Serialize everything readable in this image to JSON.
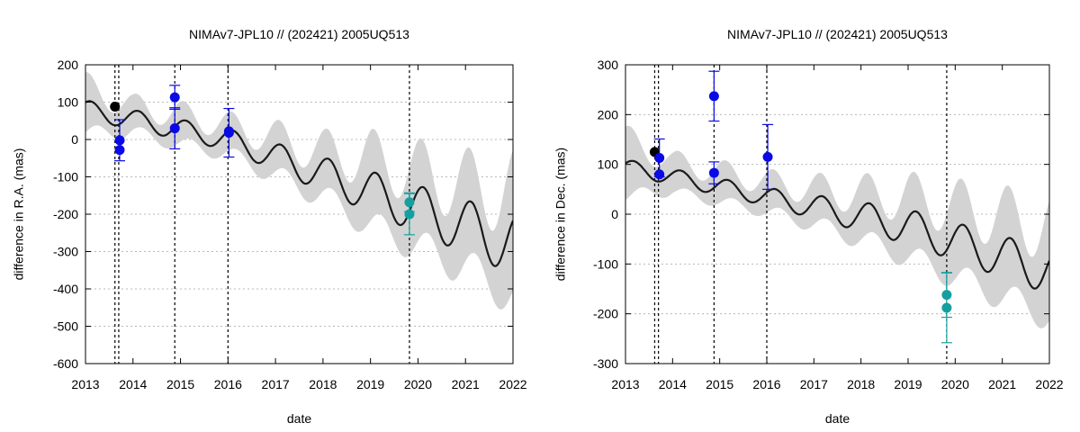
{
  "chart_data": [
    {
      "type": "line",
      "title": "NIMAv7-JPL10 // (202421) 2005UQ513",
      "xlabel": "date",
      "ylabel": "difference in R.A. (mas)",
      "xlim": [
        2013,
        2022
      ],
      "ylim": [
        -600,
        200
      ],
      "xticks": [
        2013,
        2014,
        2015,
        2016,
        2017,
        2018,
        2019,
        2020,
        2021,
        2022
      ],
      "yticks": [
        -600,
        -500,
        -400,
        -300,
        -200,
        -100,
        0,
        100,
        200
      ],
      "vlines": [
        2013.62,
        2013.7,
        2014.88,
        2016.0,
        2019.82
      ],
      "model": {
        "trend": [
          [
            2013.0,
            80
          ],
          [
            2016.0,
            0
          ],
          [
            2019.0,
            -140
          ],
          [
            2022.0,
            -280
          ]
        ],
        "amplitude": [
          [
            2013.0,
            25
          ],
          [
            2016.0,
            28
          ],
          [
            2019.0,
            55
          ],
          [
            2022.0,
            80
          ]
        ],
        "uncert": [
          [
            2013.0,
            60
          ],
          [
            2014.0,
            35
          ],
          [
            2015.0,
            40
          ],
          [
            2016.0,
            38
          ],
          [
            2017.0,
            50
          ],
          [
            2018.0,
            60
          ],
          [
            2019.0,
            90
          ],
          [
            2020.0,
            100
          ],
          [
            2021.0,
            110
          ],
          [
            2022.0,
            140
          ]
        ],
        "period": 1.0,
        "phase": 0.9
      },
      "series": [
        {
          "name": "black",
          "color": "#000000",
          "points": [
            {
              "x": 2013.62,
              "y": 88
            }
          ]
        },
        {
          "name": "blue",
          "color": "#0a0ae6",
          "points": [
            {
              "x": 2013.72,
              "y": -2,
              "err": 55
            },
            {
              "x": 2013.72,
              "y": -28
            },
            {
              "x": 2014.88,
              "y": 113,
              "err": 32
            },
            {
              "x": 2014.88,
              "y": 30,
              "err": 55
            },
            {
              "x": 2016.02,
              "y": 22
            },
            {
              "x": 2016.02,
              "y": 18,
              "err": 65
            }
          ]
        },
        {
          "name": "teal",
          "color": "#14a0a0",
          "points": [
            {
              "x": 2019.82,
              "y": -168,
              "err": 25
            },
            {
              "x": 2019.82,
              "y": -200,
              "err": 55
            }
          ]
        }
      ]
    },
    {
      "type": "line",
      "title": "NIMAv7-JPL10 // (202421) 2005UQ513",
      "xlabel": "date",
      "ylabel": "difference in Dec. (mas)",
      "xlim": [
        2013,
        2022
      ],
      "ylim": [
        -300,
        300
      ],
      "xticks": [
        2013,
        2014,
        2015,
        2016,
        2017,
        2018,
        2019,
        2020,
        2021,
        2022
      ],
      "yticks": [
        -300,
        -200,
        -100,
        0,
        100,
        200,
        300
      ],
      "vlines": [
        2013.62,
        2013.7,
        2014.88,
        2016.0,
        2019.82
      ],
      "model": {
        "trend": [
          [
            2013.0,
            95
          ],
          [
            2016.0,
            35
          ],
          [
            2019.0,
            -25
          ],
          [
            2022.0,
            -115
          ]
        ],
        "amplitude": [
          [
            2013.0,
            15
          ],
          [
            2016.0,
            18
          ],
          [
            2019.0,
            35
          ],
          [
            2022.0,
            45
          ]
        ],
        "uncert": [
          [
            2013.0,
            55
          ],
          [
            2014.0,
            30
          ],
          [
            2015.0,
            30
          ],
          [
            2016.0,
            30
          ],
          [
            2017.0,
            35
          ],
          [
            2018.0,
            45
          ],
          [
            2019.0,
            60
          ],
          [
            2020.0,
            70
          ],
          [
            2021.0,
            80
          ],
          [
            2022.0,
            90
          ]
        ],
        "period": 1.0,
        "phase": 0.5
      },
      "series": [
        {
          "name": "black",
          "color": "#000000",
          "points": [
            {
              "x": 2013.62,
              "y": 125
            }
          ]
        },
        {
          "name": "blue",
          "color": "#0a0ae6",
          "points": [
            {
              "x": 2013.72,
              "y": 113,
              "err": 38
            },
            {
              "x": 2013.72,
              "y": 80
            },
            {
              "x": 2014.88,
              "y": 237,
              "err": 50
            },
            {
              "x": 2014.88,
              "y": 83,
              "err": 22
            },
            {
              "x": 2016.02,
              "y": 115,
              "err": 65
            }
          ]
        },
        {
          "name": "teal",
          "color": "#14a0a0",
          "points": [
            {
              "x": 2019.82,
              "y": -162,
              "err": 45
            },
            {
              "x": 2019.82,
              "y": -188,
              "err": 70
            }
          ]
        }
      ]
    }
  ]
}
